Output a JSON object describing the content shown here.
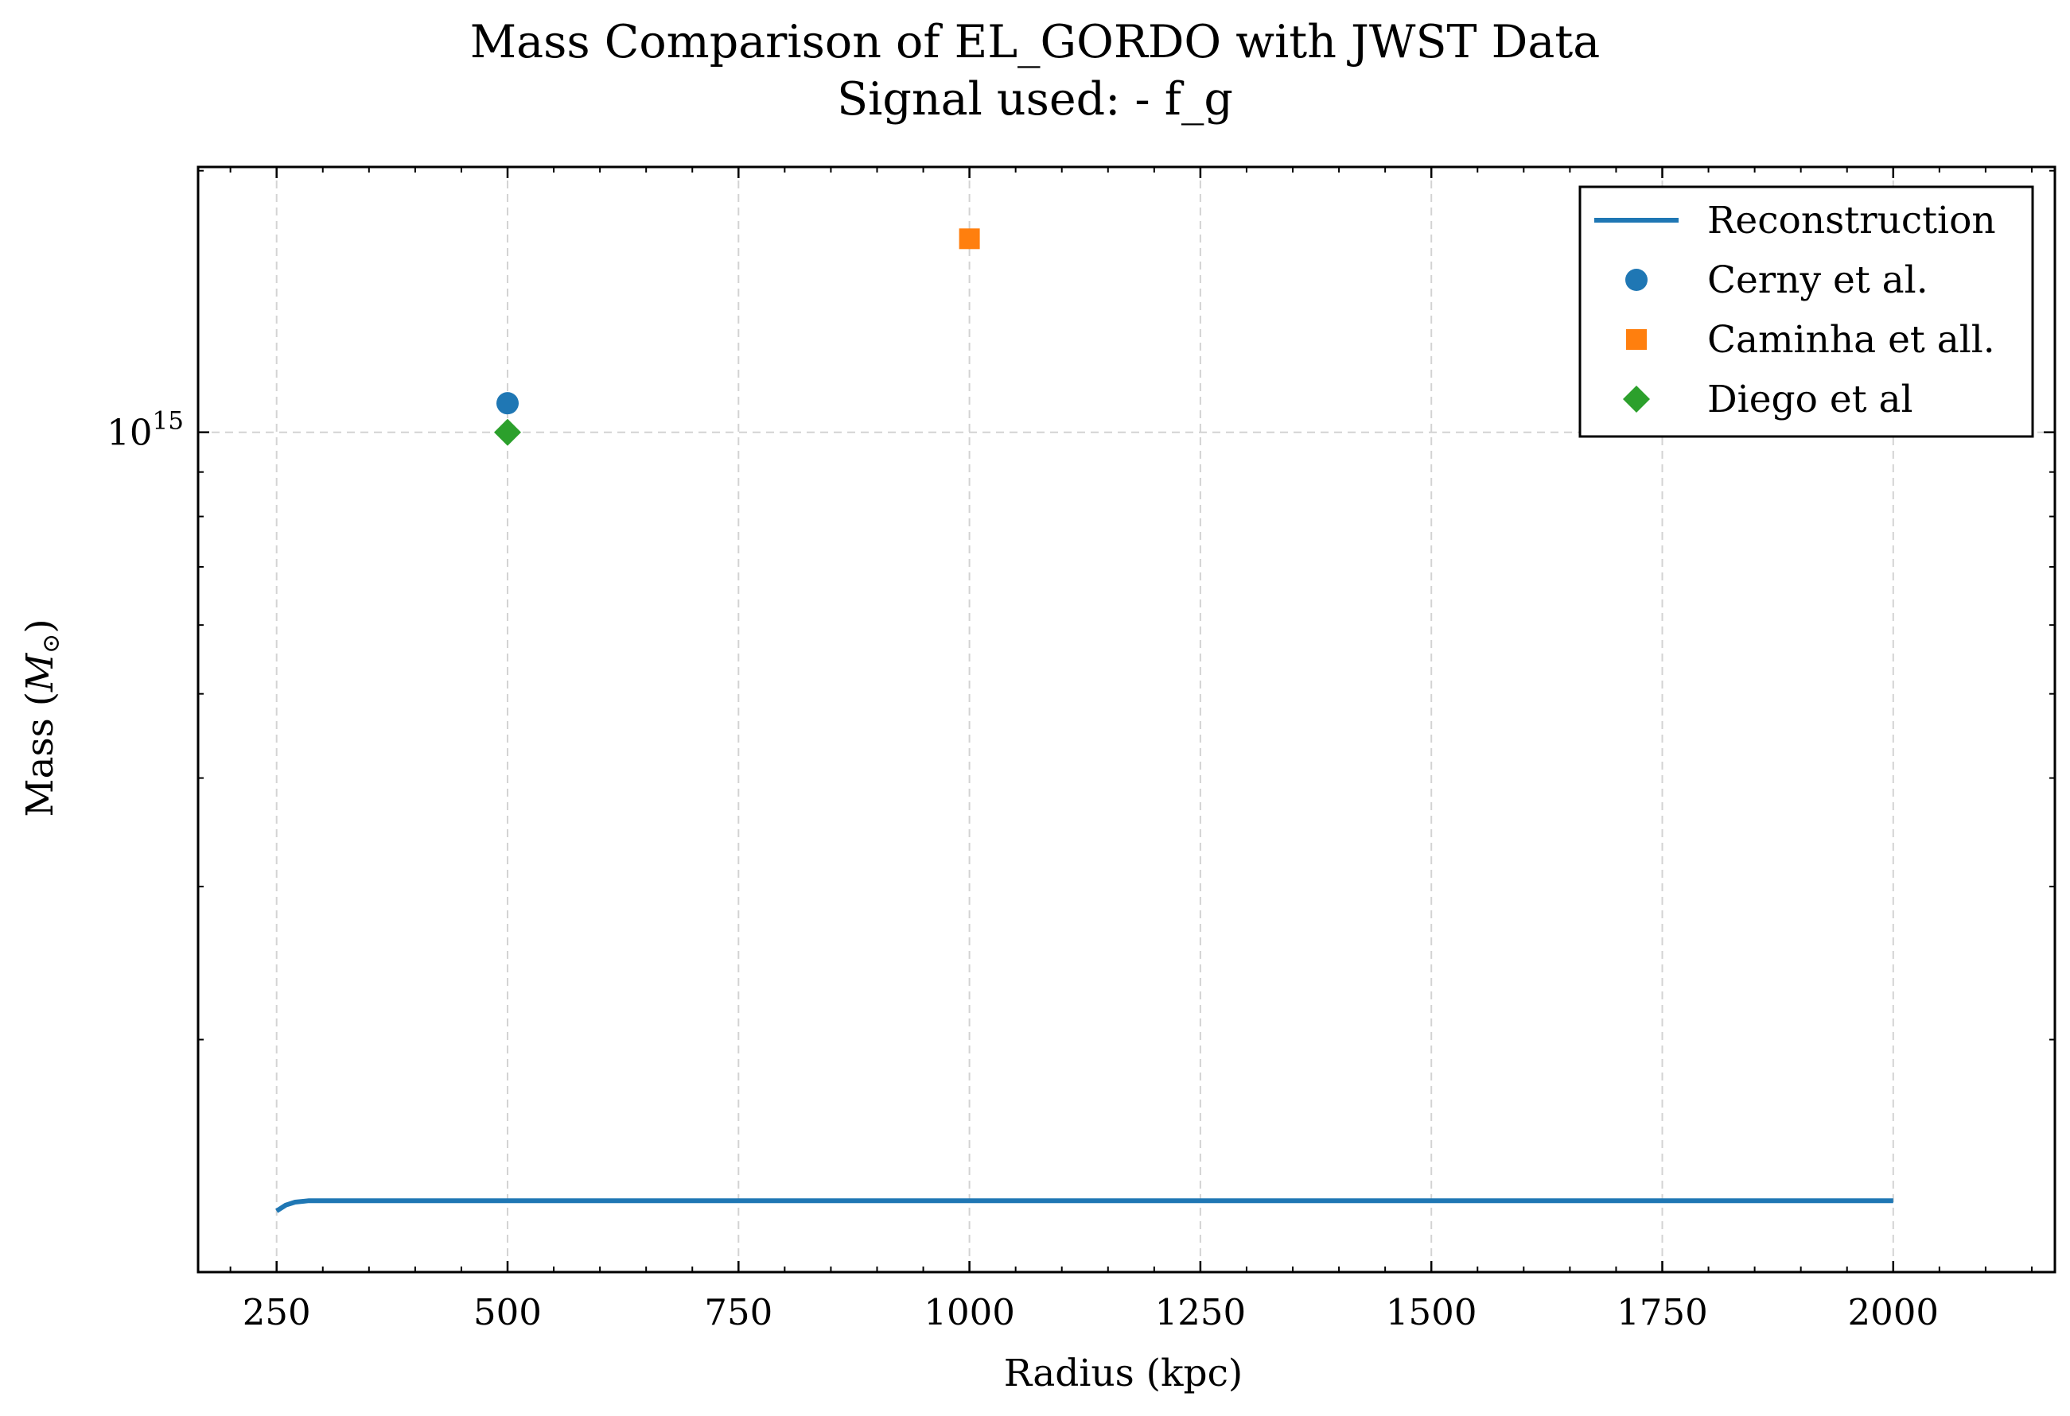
{
  "chart_data": {
    "type": "line",
    "title": "Mass Comparison of EL_GORDO with JWST Data",
    "subtitle": "Signal used: - f_g",
    "xlabel": "Radius (kpc)",
    "ylabel": "Mass",
    "ylabel_unit": "M",
    "ylabel_unit_sub": "⊙",
    "xlim": [
      165,
      2175
    ],
    "ylim": [
      108000000000000.0,
      2020000000000000.0
    ],
    "yscale": "log",
    "grid": true,
    "legend_position": "upper right",
    "x_ticks": [
      250,
      500,
      750,
      1000,
      1250,
      1500,
      1750,
      2000
    ],
    "x_tick_labels": [
      "250",
      "500",
      "750",
      "1000",
      "1250",
      "1500",
      "1750",
      "2000"
    ],
    "y_major_ticks": [
      1000000000000000.0
    ],
    "y_major_tick_labels": [
      {
        "base": "10",
        "exp": "15"
      }
    ],
    "y_minor_ticks": [
      200000000000000.0,
      300000000000000.0,
      400000000000000.0,
      500000000000000.0,
      600000000000000.0,
      700000000000000.0,
      800000000000000.0,
      900000000000000.0,
      2000000000000000.0
    ],
    "series": [
      {
        "name": "Reconstruction",
        "kind": "line",
        "color": "#1f77b4",
        "x": [
          250,
          260,
          270,
          285,
          300,
          500,
          750,
          1000,
          1250,
          1500,
          1750,
          2000
        ],
        "y": [
          127000000000000.0,
          129000000000000.0,
          130000000000000.0,
          130500000000000.0,
          130500000000000.0,
          130500000000000.0,
          130500000000000.0,
          130500000000000.0,
          130500000000000.0,
          130500000000000.0,
          130500000000000.0,
          130500000000000.0
        ]
      },
      {
        "name": "Cerny et al.",
        "kind": "scatter",
        "marker": "circle",
        "color": "#1f77b4",
        "x": [
          500
        ],
        "y": [
          1080000000000000.0
        ]
      },
      {
        "name": "Caminha et all.",
        "kind": "scatter",
        "marker": "square",
        "color": "#ff7f0e",
        "x": [
          1000
        ],
        "y": [
          1670000000000000.0
        ]
      },
      {
        "name": "Diego et al",
        "kind": "scatter",
        "marker": "diamond",
        "color": "#2ca02c",
        "x": [
          500
        ],
        "y": [
          1000000000000000.0
        ]
      }
    ]
  }
}
